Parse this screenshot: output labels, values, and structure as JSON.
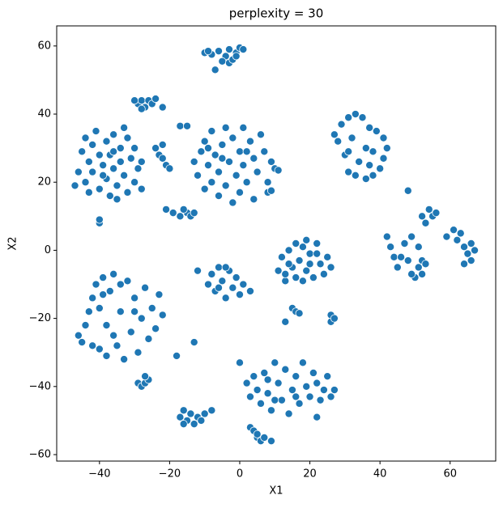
{
  "chart_data": {
    "type": "scatter",
    "title": "perplexity = 30",
    "x_label": "X1",
    "y_label": "X2",
    "color": "#1f77b4",
    "xlim": [
      -52.2,
      73
    ],
    "ylim": [
      -61.9,
      65.9
    ],
    "xticks": [
      {
        "value": -40,
        "label": "−40"
      },
      {
        "value": -20,
        "label": "−20"
      },
      0,
      20,
      40,
      60
    ],
    "yticks": [
      {
        "value": -60,
        "label": "−60"
      },
      {
        "value": -40,
        "label": "−40"
      },
      {
        "value": -20,
        "label": "−20"
      },
      0,
      20,
      40,
      60
    ],
    "x": [
      -10,
      -8,
      -6,
      -4,
      -3,
      -1,
      0,
      1,
      -5,
      -3,
      -2,
      -7,
      -1,
      -9,
      -29,
      -28,
      -27,
      -26,
      -25,
      -24,
      -28,
      -22,
      -30,
      -46,
      -45,
      -44,
      -43,
      -42,
      -42,
      -41,
      -40,
      -40,
      -39,
      -38,
      -38,
      -37,
      -37,
      -36,
      -36,
      -35,
      -34,
      -34,
      -33,
      -32,
      -32,
      -31,
      -30,
      -30,
      -29,
      -28,
      -28,
      -35,
      -39,
      -43,
      -47,
      -44,
      -33,
      -36,
      -13,
      -12,
      -11,
      -10,
      -10,
      -9,
      -8,
      -8,
      -7,
      -6,
      -6,
      -5,
      -4,
      -4,
      -3,
      -2,
      -2,
      -1,
      0,
      0,
      1,
      1,
      2,
      3,
      4,
      4,
      5,
      6,
      7,
      8,
      9,
      -5,
      2,
      -9,
      -24,
      -23,
      -22,
      -21,
      -20,
      -22,
      -17,
      -15,
      8,
      9,
      10,
      11,
      -21,
      -19,
      -17,
      -15,
      -14,
      -16,
      -13,
      -40,
      -40,
      27,
      28,
      29,
      31,
      33,
      35,
      37,
      39,
      41,
      42,
      41,
      40,
      38,
      36,
      33,
      31,
      30,
      32,
      34,
      36,
      38,
      37,
      31,
      42,
      43,
      44,
      45,
      46,
      47,
      48,
      49,
      50,
      51,
      52,
      52,
      52,
      53,
      54,
      55,
      56,
      53,
      49,
      51,
      59,
      61,
      62,
      63,
      64,
      65,
      66,
      67,
      64,
      66,
      11,
      12,
      13,
      14,
      15,
      16,
      16,
      17,
      18,
      19,
      19,
      20,
      21,
      22,
      23,
      24,
      25,
      26,
      14,
      20,
      22,
      18,
      13,
      -9,
      -8,
      -7,
      -6,
      -5,
      -4,
      -3,
      -2,
      -1,
      0,
      1,
      -6,
      3,
      -4,
      -46,
      -45,
      -44,
      -43,
      -42,
      -41,
      -40,
      -39,
      -38,
      -37,
      -36,
      -35,
      -34,
      -33,
      -32,
      -31,
      -30,
      -29,
      -28,
      -27,
      -26,
      -25,
      -24,
      -23,
      -22,
      -38,
      -36,
      -40,
      -30,
      -34,
      -42,
      -39,
      -29,
      -28,
      -27,
      -26,
      -27,
      15,
      16,
      17,
      26,
      26,
      27,
      2,
      3,
      4,
      5,
      6,
      7,
      8,
      9,
      10,
      11,
      12,
      13,
      14,
      15,
      16,
      17,
      18,
      19,
      20,
      21,
      22,
      23,
      24,
      25,
      26,
      27,
      0,
      10,
      16,
      8,
      -17,
      -16,
      -15,
      -14,
      -13,
      -12,
      -11,
      -10,
      -16,
      3,
      4,
      5,
      6,
      7,
      9,
      5,
      -18,
      -13,
      -12,
      13,
      48,
      22,
      -8
    ],
    "values": [
      58,
      57.5,
      58.5,
      57,
      59,
      58,
      59.5,
      59,
      55.5,
      55,
      56,
      53,
      57,
      58.5,
      43,
      44,
      42,
      44,
      43,
      44.5,
      41.5,
      42,
      44,
      23,
      29,
      20,
      26,
      31,
      23,
      35,
      28,
      18,
      25,
      32,
      21,
      28,
      16,
      34,
      24,
      19,
      30,
      26,
      22,
      33,
      17,
      27,
      20,
      30,
      24,
      18,
      26,
      15,
      22,
      17,
      19,
      33,
      36,
      29,
      26,
      22,
      29,
      18,
      32,
      25,
      35,
      20,
      28,
      16,
      23,
      31,
      36,
      19,
      26,
      14,
      33,
      22,
      29,
      17,
      36,
      25,
      20,
      32,
      27,
      15,
      23,
      34,
      29,
      20,
      26,
      27,
      29,
      30,
      30,
      28,
      27,
      25,
      24,
      31,
      36.5,
      36.5,
      17,
      17.5,
      24,
      23.5,
      12,
      11,
      10,
      11,
      10,
      12,
      11,
      8,
      9,
      34,
      32,
      37,
      39,
      40,
      39,
      36,
      35,
      33,
      30,
      27,
      24,
      22,
      21,
      22,
      23,
      28,
      33,
      26,
      30,
      29,
      25,
      29,
      4,
      1,
      -2,
      -5,
      -2,
      2,
      -3,
      4,
      -8,
      -5,
      -7,
      -3,
      10,
      8,
      12,
      10,
      11,
      -4,
      -7,
      1,
      4,
      6,
      3,
      5,
      1,
      -1,
      -3,
      0,
      -4,
      2,
      -6,
      -2,
      -9,
      0,
      -5,
      2,
      -8,
      -3,
      1,
      -6,
      3,
      -1,
      -8,
      2,
      -4,
      -7,
      -2,
      -5,
      -4,
      -4,
      -1,
      -9,
      -7,
      -10,
      -7,
      -12,
      -5,
      -9,
      -14,
      -6,
      -11,
      -8,
      -13,
      -10,
      -11,
      -12,
      -5,
      -25,
      -27,
      -22,
      -18,
      -14,
      -10,
      -29,
      -8,
      -31,
      -12,
      -7,
      -28,
      -18,
      -32,
      -9,
      -24,
      -14,
      -30,
      -20,
      -11,
      -26,
      -17,
      -23,
      -13,
      -19,
      -22,
      -25,
      -17,
      -18,
      -10,
      -28,
      -13,
      -39,
      -40,
      -39,
      -38,
      -37,
      -17,
      -18,
      -18.5,
      -19,
      -21,
      -20,
      -39,
      -43,
      -37,
      -41,
      -45,
      -36,
      -42,
      -47,
      -33,
      -39,
      -44,
      -35,
      -48,
      -41,
      -37,
      -45,
      -33,
      -40,
      -43,
      -36,
      -39,
      -44,
      -41,
      -37,
      -43,
      -41,
      -33,
      -44,
      -43,
      -38,
      -49,
      -47,
      -50,
      -48,
      -51,
      -49,
      -50,
      -48,
      -51,
      -52,
      -53,
      -55,
      -56,
      -55,
      -56,
      -54,
      -31,
      -27,
      -6,
      -21,
      17.5,
      -49,
      -47
    ]
  }
}
